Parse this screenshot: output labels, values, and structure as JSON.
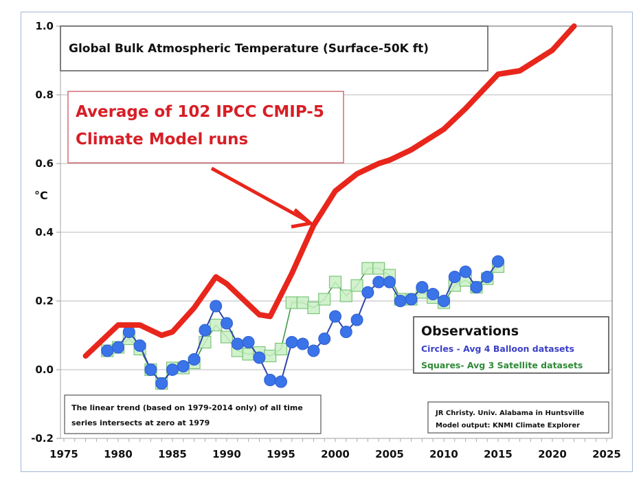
{
  "chart_data": {
    "type": "line",
    "title": "Global Bulk Atmospheric Temperature (Surface-50K ft)",
    "xlabel": "",
    "ylabel": "°C",
    "xlim": [
      1975,
      2025
    ],
    "ylim": [
      -0.2,
      1.0
    ],
    "x_ticks": [
      "1975",
      "1980",
      "1985",
      "1990",
      "1995",
      "2000",
      "2005",
      "2010",
      "2015",
      "2020",
      "2025"
    ],
    "x_tick_values": [
      1975,
      1980,
      1985,
      1990,
      1995,
      2000,
      2005,
      2010,
      2015,
      2020,
      2025
    ],
    "y_ticks": [
      "1.0",
      "0.8",
      "0.6",
      "0.4",
      "0.2",
      "0.0",
      "-0.2"
    ],
    "y_tick_values": [
      1.0,
      0.8,
      0.6,
      0.4,
      0.2,
      0.0,
      -0.2
    ],
    "grid": "horizontal",
    "series": [
      {
        "name": "Average of 102 IPCC CMIP-5 Climate Model runs",
        "color": "#e8261c",
        "marker": "none",
        "x": [
          1977,
          1979,
          1980,
          1982,
          1984,
          1985,
          1987,
          1989,
          1990,
          1993,
          1994,
          1996,
          1998,
          2000,
          2002,
          2004,
          2005,
          2007,
          2010,
          2012,
          2015,
          2017,
          2020,
          2022
        ],
        "values": [
          0.04,
          0.1,
          0.13,
          0.13,
          0.1,
          0.11,
          0.18,
          0.27,
          0.25,
          0.16,
          0.155,
          0.28,
          0.42,
          0.52,
          0.57,
          0.6,
          0.61,
          0.64,
          0.7,
          0.76,
          0.86,
          0.87,
          0.93,
          1.0
        ]
      },
      {
        "name": "Circles - Avg 4 Balloon datasets",
        "color": "#3b73e8",
        "line_color": "#2f45a8",
        "marker": "circle",
        "x": [
          1979,
          1980,
          1981,
          1982,
          1983,
          1984,
          1985,
          1986,
          1987,
          1988,
          1989,
          1990,
          1991,
          1992,
          1993,
          1994,
          1995,
          1996,
          1997,
          1998,
          1999,
          2000,
          2001,
          2002,
          2003,
          2004,
          2005,
          2006,
          2007,
          2008,
          2009,
          2010,
          2011,
          2012,
          2013,
          2014,
          2015
        ],
        "values": [
          0.055,
          0.065,
          0.11,
          0.07,
          0.0,
          -0.04,
          0.0,
          0.01,
          0.03,
          0.115,
          0.185,
          0.135,
          0.075,
          0.08,
          0.035,
          -0.03,
          -0.035,
          0.08,
          0.075,
          0.055,
          0.09,
          0.155,
          0.11,
          0.145,
          0.225,
          0.255,
          0.255,
          0.2,
          0.205,
          0.24,
          0.22,
          0.2,
          0.27,
          0.285,
          0.24,
          0.27,
          0.315
        ]
      },
      {
        "name": "Squares- Avg 3 Satellite datasets",
        "color": "#c9f0c4",
        "line_color": "#3f9a45",
        "marker": "square",
        "x": [
          1979,
          1980,
          1981,
          1982,
          1983,
          1984,
          1985,
          1986,
          1987,
          1988,
          1989,
          1990,
          1991,
          1992,
          1993,
          1994,
          1995,
          1996,
          1997,
          1998,
          1999,
          2000,
          2001,
          2002,
          2003,
          2004,
          2005,
          2006,
          2007,
          2008,
          2009,
          2010,
          2011,
          2012,
          2013,
          2014,
          2015
        ],
        "values": [
          0.055,
          0.065,
          0.09,
          0.06,
          0.0,
          -0.04,
          0.005,
          0.005,
          0.02,
          0.08,
          0.13,
          0.095,
          0.055,
          0.045,
          0.05,
          0.04,
          0.06,
          0.195,
          0.195,
          0.18,
          0.205,
          0.255,
          0.215,
          0.245,
          0.295,
          0.295,
          0.275,
          0.205,
          0.205,
          0.225,
          0.21,
          0.195,
          0.245,
          0.26,
          0.24,
          0.265,
          0.3
        ]
      }
    ],
    "annotations": {
      "model_label_line1": "Average of 102 IPCC CMIP-5",
      "model_label_line2": "Climate Model runs",
      "model_arrow_target": {
        "x": 1998,
        "y": 0.42
      },
      "legend_title": "Observations",
      "legend_circles": "Circles - Avg 4 Balloon datasets",
      "legend_squares": "Squares- Avg 3 Satellite datasets",
      "legend_position": "center-right",
      "note_line1": "The linear trend (based on 1979-2014 only) of all time",
      "note_line2": "series intersects at zero at 1979",
      "credit_line1": "JR Christy. Univ. Alabama in Huntsville",
      "credit_line2": "Model output: KNMI Climate Explorer"
    }
  }
}
